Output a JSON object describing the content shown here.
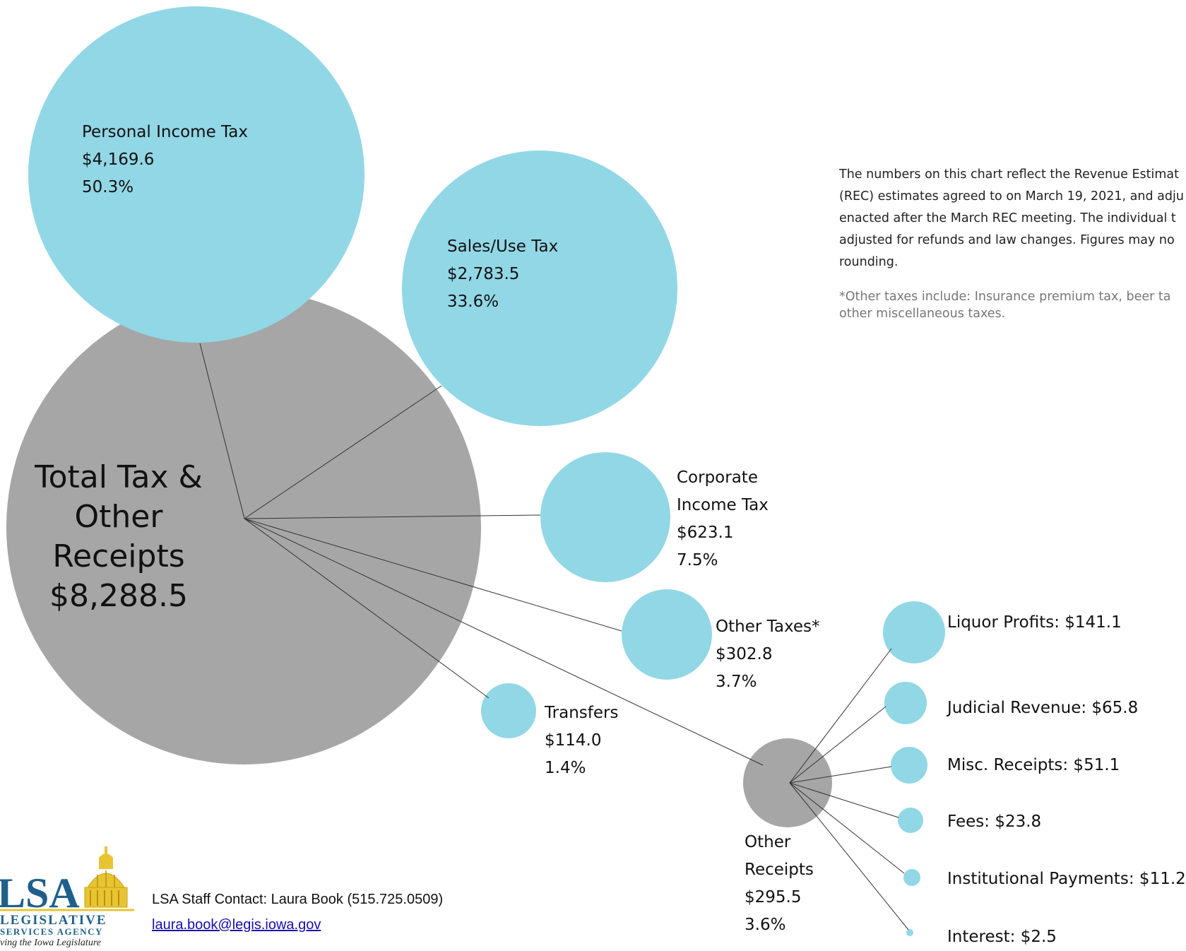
{
  "total": {
    "lines": [
      "Total Tax &",
      "Other Receipts",
      "$8,288.5"
    ],
    "value": 8288.5
  },
  "categories": [
    {
      "id": "personal-income-tax",
      "lines": [
        "Personal Income Tax",
        "$4,169.6",
        "50.3%"
      ],
      "value": 4169.6,
      "pct": 50.3
    },
    {
      "id": "sales-use-tax",
      "lines": [
        "Sales/Use  Tax",
        "$2,783.5",
        "33.6%"
      ],
      "value": 2783.5,
      "pct": 33.6
    },
    {
      "id": "corporate-income-tax",
      "lines": [
        "Corporate",
        "Income Tax",
        "$623.1",
        "7.5%"
      ],
      "value": 623.1,
      "pct": 7.5
    },
    {
      "id": "other-taxes",
      "lines": [
        "Other Taxes*",
        "$302.8",
        "3.7%"
      ],
      "value": 302.8,
      "pct": 3.7
    },
    {
      "id": "transfers",
      "lines": [
        "Transfers",
        "$114.0",
        "1.4%"
      ],
      "value": 114.0,
      "pct": 1.4
    },
    {
      "id": "other-receipts",
      "lines": [
        "Other",
        "Receipts",
        "$295.5",
        "3.6%"
      ],
      "value": 295.5,
      "pct": 3.6
    }
  ],
  "other_receipts_breakdown": [
    {
      "id": "liquor-profits",
      "label": "Liquor Profits:  $141.1",
      "value": 141.1
    },
    {
      "id": "judicial-revenue",
      "label": "Judicial Revenue:  $65.8",
      "value": 65.8
    },
    {
      "id": "misc-receipts",
      "label": "Misc. Receipts:  $51.1",
      "value": 51.1
    },
    {
      "id": "fees",
      "label": "Fees:  $23.8",
      "value": 23.8
    },
    {
      "id": "institutional-payments",
      "label": "Institutional Payments:  $11.2",
      "value": 11.2
    },
    {
      "id": "interest",
      "label": "Interest:  $2.5",
      "value": 2.5
    }
  ],
  "note": {
    "lines": [
      "The numbers on this chart reflect the Revenue Estimat",
      "(REC) estimates agreed to on March 19, 2021, and adju",
      "enacted after the March REC meeting.  The individual t",
      "adjusted for refunds and law changes.  Figures may no",
      "rounding."
    ],
    "footnote_lines": [
      "*Other taxes include:  Insurance premium tax, beer ta",
      "other miscellaneous taxes."
    ]
  },
  "contact": {
    "text": "LSA Staff Contact:  Laura Book (515.725.0509)",
    "email": "laura.book@legis.iowa.gov"
  },
  "logo": {
    "initials": "LSA",
    "line1": "LEGISLATIVE",
    "line2": "SERVICES AGENCY",
    "tagline": "ving the Iowa Legislature"
  },
  "colors": {
    "gray_bubble": "#a6a6a6",
    "blue_bubble": "#92d7e6",
    "connector": "#333333",
    "logo_blue": "#1f5f8b",
    "logo_gold": "#e8c430"
  }
}
